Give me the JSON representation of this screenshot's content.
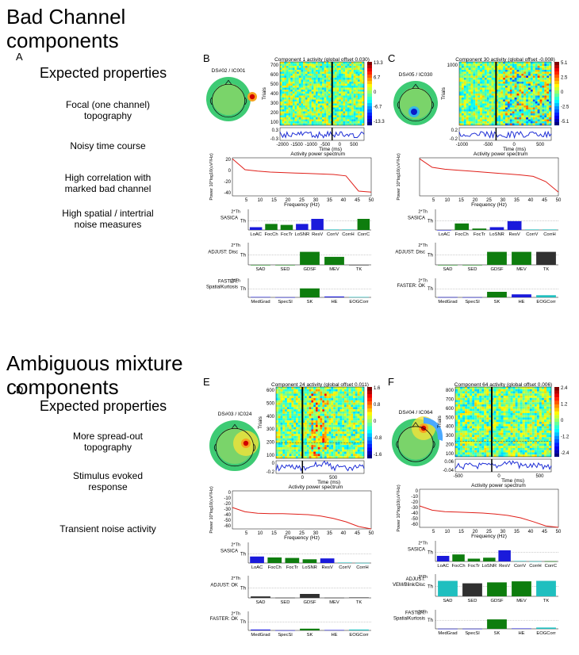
{
  "headings": {
    "bad": [
      "Bad Channel",
      "components"
    ],
    "ambiguous": [
      "Ambiguous mixture",
      "components"
    ]
  },
  "panel_letters": {
    "A": "A",
    "B": "B",
    "C": "C",
    "D": "D",
    "E": "E",
    "F": "F"
  },
  "section_A": {
    "expected": "Expected properties",
    "properties": [
      [
        "Focal (one channel)",
        "topography"
      ],
      [
        "Noisy time course"
      ],
      [
        "High correlation with",
        "marked bad channel"
      ],
      [
        "High spatial / intertrial",
        "noise measures"
      ]
    ]
  },
  "section_D": {
    "expected": "Expected properties",
    "properties": [
      [
        "More spread-out",
        "topography"
      ],
      [
        "Stimulus evoked",
        "response"
      ],
      [
        "Transient noise activity"
      ]
    ]
  },
  "colors": {
    "green": "#0e7d0e",
    "blue": "#1a1adb",
    "cyan": "#1fbfbf",
    "black": "#303030",
    "red": "#e0201a",
    "trace": "#1f2fd6"
  },
  "panels": {
    "B": {
      "ds_label": "DS#02 / IC001",
      "erp_title": "Component 1 activity (global offset 0.030)",
      "y_axis": "Trials",
      "trial_ticks": [
        "700",
        "600",
        "500",
        "400",
        "300",
        "200",
        "100"
      ],
      "colorbar_ticks": [
        "13.3",
        "6.7",
        "0",
        "-6.7",
        "-13.3"
      ],
      "trace_ticks": [
        "0.3",
        "-0.3"
      ],
      "time_ticks": [
        "-2000",
        "-1500",
        "-1000",
        "-500",
        "0",
        "500"
      ],
      "time_label": "Time (ms)",
      "spec_title": "Activity power spectrum",
      "spec_yticks": [
        "20",
        "0",
        "-20",
        "-40"
      ],
      "spec_ylabel": "Power 10*log10(uV²/Hz)",
      "freq_ticks": [
        "5",
        "10",
        "15",
        "20",
        "25",
        "30",
        "35",
        "40",
        "45",
        "50"
      ],
      "freq_label": "Frequency (Hz)",
      "spectrum_db": [
        28,
        5,
        2,
        0,
        -1,
        -2,
        -3,
        -4,
        -5,
        -8,
        -40,
        -42
      ],
      "sasica": {
        "label": [
          "SASICA"
        ],
        "cats": [
          "LoAC",
          "FocCh",
          "FocTr",
          "LoSNR",
          "ResV",
          "CorrV",
          "CorrH",
          "CorrC"
        ],
        "values": [
          0.3,
          0.65,
          0.55,
          0.65,
          1.2,
          0.05,
          0.05,
          1.2
        ],
        "colors": [
          "blue",
          "green",
          "green",
          "blue",
          "blue",
          "cyan",
          "cyan",
          "green"
        ]
      },
      "adjust": {
        "label": [
          "ADJUST: Disc"
        ],
        "cats": [
          "SAD",
          "SED",
          "GDSF",
          "MEV",
          "TK"
        ],
        "values": [
          0,
          0,
          1.3,
          0.8,
          0
        ],
        "colors": [
          "green",
          "green",
          "green",
          "green",
          "black"
        ]
      },
      "faster": {
        "label": [
          "FASTER:",
          "SpatialKurtosis"
        ],
        "cats": [
          "MedGrad",
          "SpecSl",
          "SK",
          "HE",
          "EOGCorr"
        ],
        "values": [
          0.05,
          0.02,
          1.05,
          0.1,
          0.05
        ],
        "colors": [
          "blue",
          "blue",
          "green",
          "blue",
          "cyan"
        ]
      }
    },
    "C": {
      "ds_label": "DS#05 / IC030",
      "erp_title": "Component 30 activity (global offset -0.008)",
      "y_axis": "Trials",
      "trial_ticks": [
        "1000"
      ],
      "colorbar_ticks": [
        "5.1",
        "2.5",
        "0",
        "-2.5",
        "-5.1"
      ],
      "trace_ticks": [
        "0.2",
        "-0.2"
      ],
      "time_ticks": [
        "-1000",
        "-500",
        "0",
        "500"
      ],
      "time_label": "Time (ms)",
      "spec_title": "Activity power spectrum",
      "spec_yticks": [
        "",
        ""
      ],
      "spec_ylabel": "Power 10*log10(uV²/Hz)",
      "freq_ticks": [
        "5",
        "10",
        "15",
        "20",
        "25",
        "30",
        "35",
        "40",
        "45",
        "50"
      ],
      "freq_label": "Frequency (Hz)",
      "spectrum_db": [
        28,
        10,
        6,
        4,
        2,
        0,
        -2,
        -4,
        -6,
        -9,
        -20,
        -42
      ],
      "sasica": {
        "label": [
          "SASICA"
        ],
        "cats": [
          "LoAC",
          "FocCh",
          "FocTr",
          "LoSNR",
          "ResV",
          "CorrV",
          "CorrH"
        ],
        "values": [
          0,
          0.7,
          0.15,
          0.3,
          0.95,
          0.05,
          0.05
        ],
        "colors": [
          "blue",
          "green",
          "green",
          "blue",
          "blue",
          "cyan",
          "cyan"
        ]
      },
      "adjust": {
        "label": [
          "ADJUST: Disc"
        ],
        "cats": [
          "SAD",
          "SED",
          "GDSF",
          "MEV",
          "TK"
        ],
        "values": [
          0,
          0,
          1.3,
          1.3,
          1.3
        ],
        "colors": [
          "green",
          "green",
          "green",
          "green",
          "black"
        ]
      },
      "faster": {
        "label": [
          "FASTER: OK"
        ],
        "cats": [
          "MedGrad",
          "SpecSl",
          "SK",
          "HE",
          "EOGCorr"
        ],
        "values": [
          0.03,
          0.02,
          0.65,
          0.35,
          0.25
        ],
        "colors": [
          "blue",
          "blue",
          "green",
          "blue",
          "cyan"
        ]
      }
    },
    "E": {
      "ds_label": "DS#03 / IC024",
      "erp_title": "Component 24 activity (global offset 0.011)",
      "y_axis": "Trials",
      "trial_ticks": [
        "600",
        "500",
        "400",
        "300",
        "200",
        "100"
      ],
      "colorbar_ticks": [
        "1.6",
        "0.8",
        "0",
        "-0.8",
        "-1.6"
      ],
      "trace_ticks": [
        "0",
        "-0.2"
      ],
      "time_ticks": [
        "0",
        "500"
      ],
      "time_label": "Time (ms)",
      "spec_title": "Activity power spectrum",
      "spec_yticks": [
        "0",
        "-10",
        "-20",
        "-30",
        "-40",
        "-50",
        "-60"
      ],
      "spec_ylabel": "Power 10*log10(uV²/Hz)",
      "freq_ticks": [
        "5",
        "10",
        "15",
        "20",
        "25",
        "30",
        "35",
        "40",
        "45",
        "50"
      ],
      "freq_label": "Frequency (Hz)",
      "spectrum_db": [
        -5,
        -14,
        -17,
        -18,
        -18,
        -19,
        -20,
        -23,
        -28,
        -35,
        -45,
        -58
      ],
      "sasica": {
        "label": [
          "SASICA"
        ],
        "cats": [
          "LoAC",
          "FocCh",
          "FocTr",
          "LoSNR",
          "ResV",
          "CorrV",
          "CorrH"
        ],
        "values": [
          0.7,
          0.6,
          0.55,
          0.4,
          0.5,
          0.05,
          0.02
        ],
        "colors": [
          "blue",
          "green",
          "green",
          "green",
          "blue",
          "cyan",
          "cyan"
        ]
      },
      "adjust": {
        "label": [
          "ADJUST: OK"
        ],
        "cats": [
          "SAD",
          "SED",
          "GDSF",
          "MEV",
          "TK"
        ],
        "values": [
          0.15,
          0.02,
          0.4,
          0.02,
          0.05
        ],
        "colors": [
          "black",
          "black",
          "black",
          "black",
          "black"
        ]
      },
      "faster": {
        "label": [
          "FASTER: OK"
        ],
        "cats": [
          "MedGrad",
          "SpecSl",
          "SK",
          "HE",
          "EOGCorr"
        ],
        "values": [
          0.1,
          0.02,
          0.2,
          0.05,
          0.1
        ],
        "colors": [
          "blue",
          "blue",
          "green",
          "blue",
          "cyan"
        ]
      }
    },
    "F": {
      "ds_label": "DS#04 / IC064",
      "erp_title": "Component 64 activity (global offset 0.006)",
      "y_axis": "Trials",
      "trial_ticks": [
        "800",
        "700",
        "600",
        "500",
        "400",
        "300",
        "200",
        "100"
      ],
      "colorbar_ticks": [
        "2.4",
        "1.2",
        "0",
        "-1.2",
        "-2.4"
      ],
      "trace_ticks": [
        "0.06",
        "-0.04"
      ],
      "time_ticks": [
        "-500",
        "0",
        "500"
      ],
      "time_label": "Time (ms)",
      "spec_title": "Activity power spectrum",
      "spec_yticks": [
        "0",
        "-10",
        "-20",
        "-30",
        "-40",
        "-50",
        "-60"
      ],
      "spec_ylabel": "Power 10*log10(uV²/Hz)",
      "freq_ticks": [
        "5",
        "10",
        "15",
        "20",
        "25",
        "30",
        "35",
        "40",
        "45",
        "50"
      ],
      "freq_label": "Frequency (Hz)",
      "spectrum_db": [
        -5,
        -14,
        -17,
        -18,
        -19,
        -20,
        -22,
        -25,
        -30,
        -38,
        -47,
        -55
      ],
      "sasica": {
        "label": [
          "SASICA"
        ],
        "cats": [
          "LoAC",
          "FocCh",
          "FocTr",
          "LoSNR",
          "ResV",
          "CorrV",
          "CorrH",
          "CorrC"
        ],
        "values": [
          0.6,
          0.75,
          0.3,
          0.4,
          1.2,
          0.05,
          0.02,
          0.02
        ],
        "colors": [
          "blue",
          "green",
          "green",
          "green",
          "blue",
          "cyan",
          "cyan",
          "green"
        ]
      },
      "adjust": {
        "label": [
          "ADJUST:",
          "VEM/Blink/Disc"
        ],
        "cats": [
          "SAD",
          "SED",
          "GDSF",
          "MEV",
          "TK"
        ],
        "values": [
          1.55,
          1.3,
          1.4,
          1.5,
          1.55
        ],
        "colors": [
          "cyan",
          "black",
          "green",
          "green",
          "cyan"
        ]
      },
      "faster": {
        "label": [
          "FASTER:",
          "SpatialKurtosis"
        ],
        "cats": [
          "MedGrad",
          "SpecSl",
          "SK",
          "HE",
          "EOGCorr"
        ],
        "values": [
          0.02,
          0.02,
          1.1,
          0.05,
          0.15
        ],
        "colors": [
          "blue",
          "blue",
          "green",
          "blue",
          "cyan"
        ]
      }
    }
  }
}
